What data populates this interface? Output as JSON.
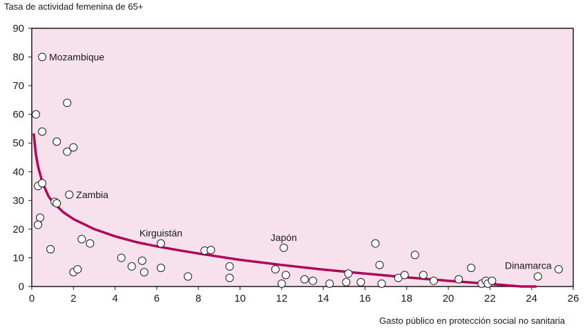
{
  "chart_data": {
    "type": "scatter",
    "title": "",
    "ylabel": "Tasa de actividad femenina de 65+",
    "xlabel": "Gasto público en protección social no sanitaria",
    "xlim": [
      0,
      26
    ],
    "ylim": [
      0,
      90
    ],
    "xticks": [
      "0",
      "2",
      "4",
      "6",
      "8",
      "10",
      "12",
      "14",
      "16",
      "18",
      "20",
      "22",
      "24",
      "26"
    ],
    "yticks": [
      "0",
      "10",
      "20",
      "30",
      "40",
      "50",
      "60",
      "70",
      "80",
      "90"
    ],
    "grid": false,
    "colors": {
      "background": "#f7e1ec",
      "trend": "#b0005a",
      "points": "#ffffff",
      "outline": "#1a1a1a"
    },
    "points": [
      {
        "x": 0.2,
        "y": 60
      },
      {
        "x": 0.5,
        "y": 80,
        "label": "Mozambique"
      },
      {
        "x": 0.5,
        "y": 54
      },
      {
        "x": 0.3,
        "y": 35
      },
      {
        "x": 0.5,
        "y": 36
      },
      {
        "x": 0.4,
        "y": 24
      },
      {
        "x": 0.3,
        "y": 21.5
      },
      {
        "x": 0.9,
        "y": 13
      },
      {
        "x": 1.1,
        "y": 29.5
      },
      {
        "x": 1.2,
        "y": 29
      },
      {
        "x": 1.2,
        "y": 50.5
      },
      {
        "x": 1.7,
        "y": 64
      },
      {
        "x": 1.7,
        "y": 47
      },
      {
        "x": 2.0,
        "y": 48.5
      },
      {
        "x": 1.8,
        "y": 32,
        "label": "Zambia"
      },
      {
        "x": 2.0,
        "y": 5
      },
      {
        "x": 2.2,
        "y": 6
      },
      {
        "x": 2.4,
        "y": 16.5
      },
      {
        "x": 2.8,
        "y": 15
      },
      {
        "x": 4.3,
        "y": 10
      },
      {
        "x": 4.8,
        "y": 7
      },
      {
        "x": 5.3,
        "y": 9
      },
      {
        "x": 5.4,
        "y": 5
      },
      {
        "x": 6.2,
        "y": 15,
        "label": "Kirguistán"
      },
      {
        "x": 6.2,
        "y": 6.5
      },
      {
        "x": 7.5,
        "y": 3.5
      },
      {
        "x": 8.3,
        "y": 12.5
      },
      {
        "x": 8.6,
        "y": 12.7
      },
      {
        "x": 9.5,
        "y": 7
      },
      {
        "x": 9.5,
        "y": 3
      },
      {
        "x": 11.7,
        "y": 6
      },
      {
        "x": 12.0,
        "y": 1
      },
      {
        "x": 12.1,
        "y": 13.5,
        "label": "Japón"
      },
      {
        "x": 12.2,
        "y": 4
      },
      {
        "x": 13.1,
        "y": 2.5
      },
      {
        "x": 13.5,
        "y": 2
      },
      {
        "x": 14.3,
        "y": 1
      },
      {
        "x": 15.1,
        "y": 1.5
      },
      {
        "x": 15.2,
        "y": 4.5
      },
      {
        "x": 15.8,
        "y": 1.5
      },
      {
        "x": 16.5,
        "y": 15
      },
      {
        "x": 16.7,
        "y": 7.5
      },
      {
        "x": 16.8,
        "y": 1
      },
      {
        "x": 17.6,
        "y": 3
      },
      {
        "x": 17.9,
        "y": 4
      },
      {
        "x": 18.4,
        "y": 11
      },
      {
        "x": 18.8,
        "y": 4
      },
      {
        "x": 19.3,
        "y": 2
      },
      {
        "x": 20.5,
        "y": 2.5
      },
      {
        "x": 21.1,
        "y": 6.5
      },
      {
        "x": 21.6,
        "y": 1
      },
      {
        "x": 21.8,
        "y": 2
      },
      {
        "x": 21.9,
        "y": 1
      },
      {
        "x": 22.1,
        "y": 2
      },
      {
        "x": 24.3,
        "y": 3.5,
        "label": "Dinamarca"
      },
      {
        "x": 25.3,
        "y": 6
      }
    ],
    "trendline": {
      "points": [
        [
          0.1,
          53
        ],
        [
          0.2,
          46
        ],
        [
          0.3,
          42
        ],
        [
          0.5,
          36.5
        ],
        [
          0.8,
          31.5
        ],
        [
          1,
          29.5
        ],
        [
          1.5,
          26
        ],
        [
          2,
          23.5
        ],
        [
          3,
          20
        ],
        [
          4,
          17.5
        ],
        [
          5,
          15.5
        ],
        [
          6,
          14
        ],
        [
          7,
          12.7
        ],
        [
          8,
          11.5
        ],
        [
          10,
          9.3
        ],
        [
          12,
          7.5
        ],
        [
          14,
          5.9
        ],
        [
          16,
          4.5
        ],
        [
          18,
          3.2
        ],
        [
          20,
          2
        ],
        [
          22,
          0.9
        ],
        [
          23.5,
          0
        ],
        [
          24.2,
          0
        ]
      ]
    }
  }
}
